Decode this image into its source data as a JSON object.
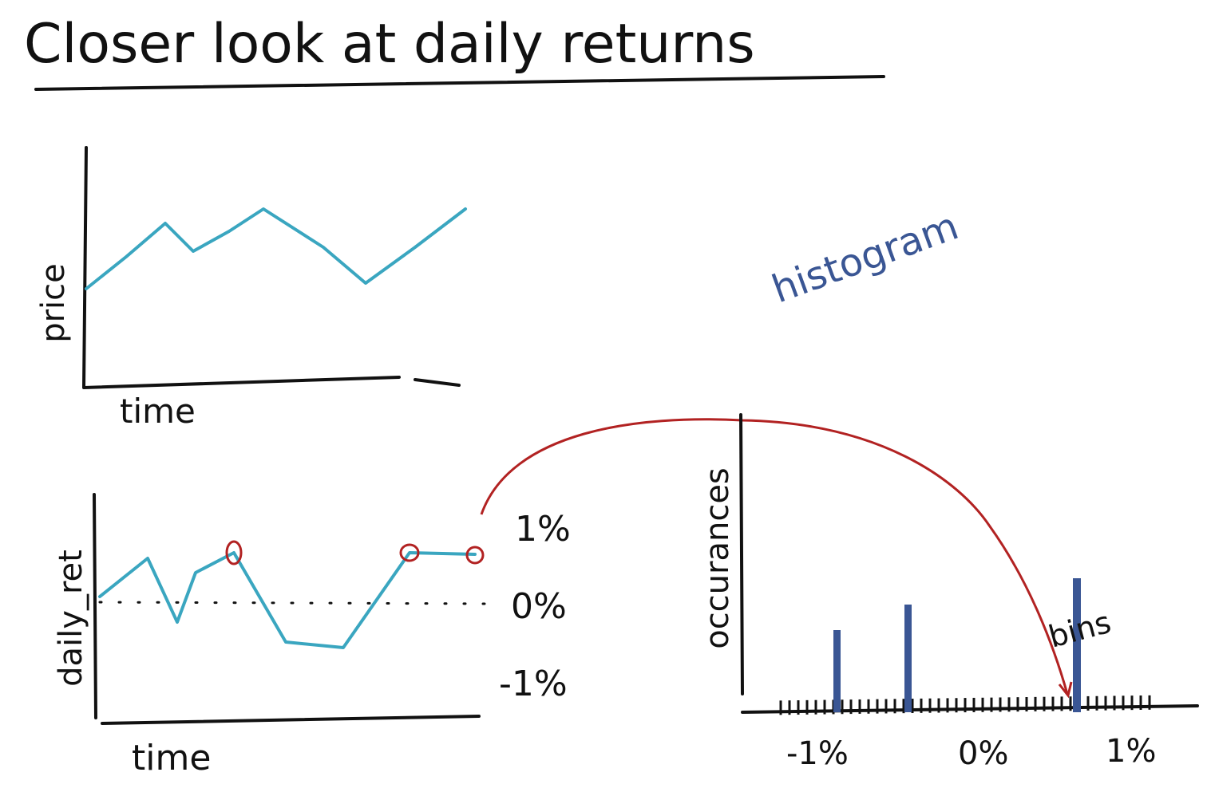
{
  "header": {
    "title": "Closer look at daily returns"
  },
  "price_plot": {
    "y_label": "price",
    "x_label": "time"
  },
  "histogram_note": "histogram",
  "returns_plot": {
    "y_label": "daily_ret",
    "x_label": "time",
    "levels": [
      "1%",
      "0%",
      "-1%"
    ]
  },
  "histogram_plot": {
    "y_label": "occurances",
    "bins_label": "bins",
    "x_labels": [
      "-1%",
      "0%",
      "1%"
    ]
  }
}
